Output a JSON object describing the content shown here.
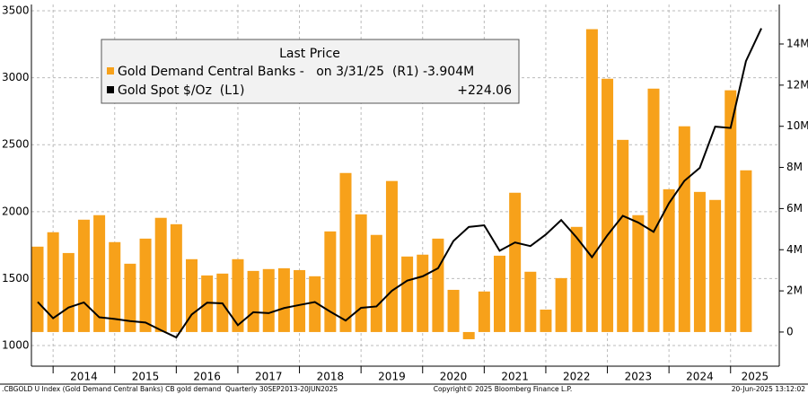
{
  "chart_data": {
    "type": "bar",
    "categories": [
      null,
      null,
      null,
      null,
      null,
      null,
      null,
      null,
      null,
      null,
      null,
      null,
      null,
      null,
      null,
      null,
      null,
      null,
      null,
      null,
      null,
      null,
      null,
      null,
      null,
      null,
      null,
      null,
      null,
      null,
      null,
      null,
      null,
      null,
      null,
      null,
      null,
      null,
      null,
      null,
      null,
      null,
      null,
      null,
      null,
      null,
      null,
      null
    ],
    "year_labels": [
      "2014",
      "2015",
      "2016",
      "2017",
      "2018",
      "2019",
      "2020",
      "2021",
      "2022",
      "2023",
      "2024",
      "2025"
    ],
    "legend_title": "Last Price",
    "series": [
      {
        "name": "Gold Demand Central Banks -   on 3/31/25  (R1) -3.904M",
        "type": "bar",
        "axis": "y2",
        "color": "#f7a11a",
        "values": [
          4.15,
          4.85,
          3.84,
          5.46,
          5.68,
          4.37,
          3.32,
          4.54,
          5.55,
          5.24,
          3.54,
          2.75,
          2.84,
          3.54,
          2.97,
          3.06,
          3.1,
          3.01,
          2.71,
          4.89,
          7.73,
          5.72,
          4.72,
          7.34,
          3.67,
          3.76,
          4.54,
          2.05,
          -0.35,
          1.97,
          3.71,
          6.77,
          2.93,
          1.09,
          2.62,
          5.11,
          14.72,
          12.31,
          9.34,
          5.68,
          11.83,
          6.94,
          10.0,
          6.81,
          6.42,
          11.75,
          7.86,
          null
        ]
      },
      {
        "name": "Gold Spot $/Oz  (L1)",
        "legend_value": "+224.06",
        "type": "line",
        "axis": "y",
        "color": "#000000",
        "values": [
          1326,
          1204,
          1284,
          1322,
          1211,
          1199,
          1183,
          1172,
          1115,
          1061,
          1232,
          1320,
          1315,
          1152,
          1249,
          1242,
          1280,
          1303,
          1325,
          1253,
          1187,
          1282,
          1292,
          1409,
          1485,
          1517,
          1577,
          1781,
          1886,
          1898,
          1708,
          1770,
          1743,
          1829,
          1937,
          1807,
          1660,
          1824,
          1969,
          1919,
          1849,
          2063,
          2230,
          2327,
          2635,
          2625,
          3124,
          3369
        ]
      }
    ],
    "ylim": [
      846,
      3547
    ],
    "yticks": [
      1000,
      1500,
      2000,
      2500,
      3000,
      3500
    ],
    "y2lim": [
      -1.66,
      15.92
    ],
    "y2ticks": [
      0,
      {
        "value": 2,
        "label": "2M"
      },
      {
        "value": 4,
        "label": "4M"
      },
      {
        "value": 6,
        "label": "6M"
      },
      {
        "value": 8,
        "label": "8M"
      },
      {
        "value": 10,
        "label": "10M"
      },
      {
        "value": 12,
        "label": "12M"
      },
      {
        "value": 14,
        "label": "14M"
      }
    ],
    "grid": true,
    "footer_left": ".CBGOLD U Index (Gold Demand Central Banks) CB gold demand  Quarterly 30SEP2013-20JUN2025",
    "footer_center": "Copyright© 2025 Bloomberg Finance L.P.",
    "footer_right": "20-Jun-2025 13:12:02"
  }
}
